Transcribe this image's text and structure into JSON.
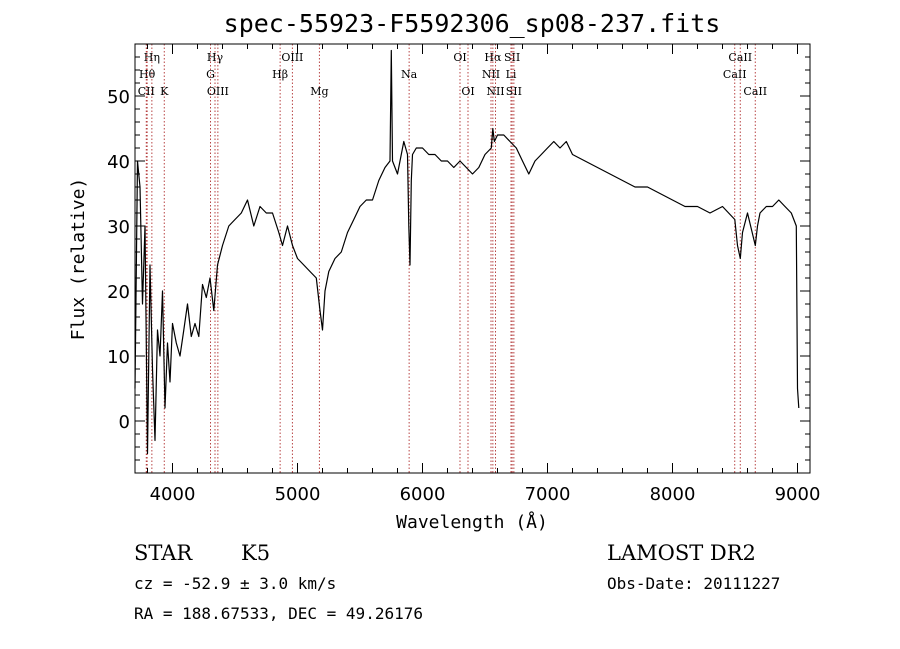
{
  "chart_data": {
    "type": "line",
    "title": "spec-55923-F5592306_sp08-237.fits",
    "xlabel": "Wavelength (Å)",
    "ylabel": "Flux (relative)",
    "xlim": [
      3700,
      9100
    ],
    "ylim": [
      -8,
      58
    ],
    "xticks": [
      4000,
      5000,
      6000,
      7000,
      8000,
      9000
    ],
    "yticks": [
      0,
      10,
      20,
      30,
      40,
      50
    ],
    "series": [
      {
        "x": [
          3700,
          3720,
          3740,
          3760,
          3780,
          3800,
          3820,
          3840,
          3860,
          3880,
          3900,
          3920,
          3940,
          3960,
          3980,
          4000,
          4030,
          4060,
          4090,
          4120,
          4150,
          4180,
          4210,
          4240,
          4270,
          4300,
          4330,
          4360,
          4400,
          4450,
          4500,
          4550,
          4600,
          4650,
          4700,
          4750,
          4800,
          4850,
          4880,
          4920,
          4960,
          5000,
          5050,
          5100,
          5150,
          5180,
          5200,
          5220,
          5250,
          5300,
          5350,
          5400,
          5450,
          5500,
          5550,
          5600,
          5650,
          5700,
          5740,
          5750,
          5760,
          5800,
          5850,
          5880,
          5890,
          5900,
          5910,
          5920,
          5950,
          6000,
          6050,
          6100,
          6150,
          6200,
          6250,
          6300,
          6350,
          6400,
          6450,
          6500,
          6550,
          6562,
          6575,
          6600,
          6650,
          6700,
          6750,
          6800,
          6850,
          6900,
          6950,
          7000,
          7050,
          7100,
          7150,
          7200,
          7300,
          7400,
          7500,
          7600,
          7700,
          7800,
          7900,
          8000,
          8100,
          8200,
          8300,
          8400,
          8498,
          8520,
          8542,
          8560,
          8600,
          8662,
          8680,
          8700,
          8750,
          8800,
          8850,
          8900,
          8950,
          8990,
          9000,
          9010
        ],
        "y": [
          5,
          40,
          36,
          18,
          30,
          -5,
          24,
          8,
          -3,
          14,
          10,
          20,
          2,
          12,
          6,
          15,
          12,
          10,
          14,
          18,
          13,
          15,
          13,
          21,
          19,
          22,
          17,
          24,
          27,
          30,
          31,
          32,
          34,
          30,
          33,
          32,
          32,
          29,
          27,
          30,
          27,
          25,
          24,
          23,
          22,
          17,
          14,
          20,
          23,
          25,
          26,
          29,
          31,
          33,
          34,
          34,
          37,
          39,
          40,
          57,
          40,
          38,
          43,
          41,
          30,
          24,
          37,
          41,
          42,
          42,
          41,
          41,
          40,
          40,
          39,
          40,
          39,
          38,
          39,
          41,
          42,
          45,
          43,
          44,
          44,
          43,
          42,
          40,
          38,
          40,
          41,
          42,
          43,
          42,
          43,
          41,
          40,
          39,
          38,
          37,
          36,
          36,
          35,
          34,
          33,
          33,
          32,
          33,
          31,
          27,
          25,
          29,
          32,
          27,
          30,
          32,
          33,
          33,
          34,
          33,
          32,
          30,
          5,
          2
        ]
      }
    ],
    "vlines": [
      {
        "label": "Hη",
        "x": 3835,
        "row": 0
      },
      {
        "label": "Hθ",
        "x": 3797,
        "row": 1
      },
      {
        "label": "CII",
        "x": 3790,
        "row": 2
      },
      {
        "label": "K",
        "x": 3934,
        "row": 2
      },
      {
        "label": "Hγ",
        "x": 4340,
        "row": 0
      },
      {
        "label": "G",
        "x": 4304,
        "row": 1
      },
      {
        "label": "OIII",
        "x": 4363,
        "row": 2
      },
      {
        "label": "Hβ",
        "x": 4861,
        "row": 1
      },
      {
        "label": "OIII",
        "x": 4959,
        "row": 0
      },
      {
        "label": "Mg",
        "x": 5175,
        "row": 2
      },
      {
        "label": "Na",
        "x": 5893,
        "row": 1
      },
      {
        "label": "OI",
        "x": 6300,
        "row": 0
      },
      {
        "label": "OI",
        "x": 6364,
        "row": 2
      },
      {
        "label": "Hα",
        "x": 6563,
        "row": 0
      },
      {
        "label": "SII",
        "x": 6717,
        "row": 0
      },
      {
        "label": "NII",
        "x": 6548,
        "row": 1
      },
      {
        "label": "Li",
        "x": 6708,
        "row": 1
      },
      {
        "label": "NII",
        "x": 6584,
        "row": 2
      },
      {
        "label": "SII",
        "x": 6731,
        "row": 2
      },
      {
        "label": "CaII",
        "x": 8542,
        "row": 0
      },
      {
        "label": "CaII",
        "x": 8498,
        "row": 1
      },
      {
        "label": "CaII",
        "x": 8662,
        "row": 2
      }
    ]
  },
  "info": {
    "type": "STAR",
    "subclass": "K5",
    "survey": "LAMOST DR2",
    "cz": "cz = -52.9 ± 3.0 km/s",
    "obs_date": "Obs-Date: 20111227",
    "coords": "RA = 188.67533, DEC =  49.26176"
  }
}
